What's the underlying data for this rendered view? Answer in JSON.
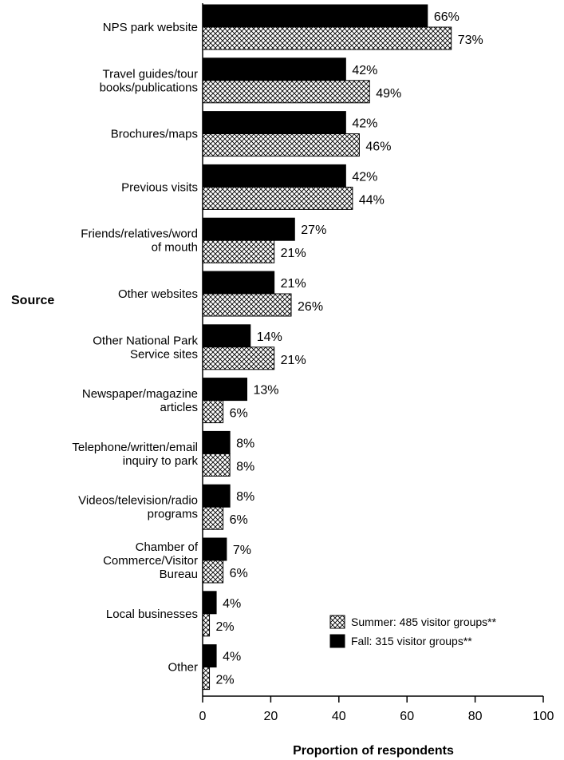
{
  "chart_data": {
    "type": "bar",
    "orientation": "horizontal",
    "xlabel": "Proportion of respondents",
    "ylabel": "Source",
    "xlim": [
      0,
      100
    ],
    "xticks": [
      0,
      20,
      40,
      60,
      80,
      100
    ],
    "legend_position": "bottom-right",
    "grid": false,
    "categories": [
      [
        "NPS park website"
      ],
      [
        "Travel guides/tour",
        "books/publications"
      ],
      [
        "Brochures/maps"
      ],
      [
        "Previous visits"
      ],
      [
        "Friends/relatives/word",
        "of mouth"
      ],
      [
        "Other websites"
      ],
      [
        "Other National Park",
        "Service sites"
      ],
      [
        "Newspaper/magazine",
        "articles"
      ],
      [
        "Telephone/written/email",
        "inquiry to park"
      ],
      [
        "Videos/television/radio",
        "programs"
      ],
      [
        "Chamber of",
        "Commerce/Visitor",
        "Bureau"
      ],
      [
        "Local businesses"
      ],
      [
        "Other"
      ]
    ],
    "series": [
      {
        "name": "Fall: 315 visitor groups**",
        "pattern": "solid",
        "color": "#000000",
        "values": [
          66,
          42,
          42,
          42,
          27,
          21,
          14,
          13,
          8,
          8,
          7,
          4,
          4
        ],
        "labels": [
          "66%",
          "42%",
          "42%",
          "42%",
          "27%",
          "21%",
          "14%",
          "13%",
          "8%",
          "8%",
          "7%",
          "4%",
          "4%"
        ]
      },
      {
        "name": "Summer: 485 visitor groups**",
        "pattern": "crosshatch",
        "color": "#000000",
        "values": [
          73,
          49,
          46,
          44,
          21,
          26,
          21,
          6,
          8,
          6,
          6,
          2,
          2
        ],
        "labels": [
          "73%",
          "49%",
          "46%",
          "44%",
          "21%",
          "26%",
          "21%",
          "6%",
          "8%",
          "6%",
          "6%",
          "2%",
          "2%"
        ]
      }
    ],
    "legend": [
      {
        "label": "Summer: 485 visitor groups**",
        "pattern": "crosshatch"
      },
      {
        "label": "Fall: 315 visitor groups**",
        "pattern": "solid"
      }
    ]
  }
}
